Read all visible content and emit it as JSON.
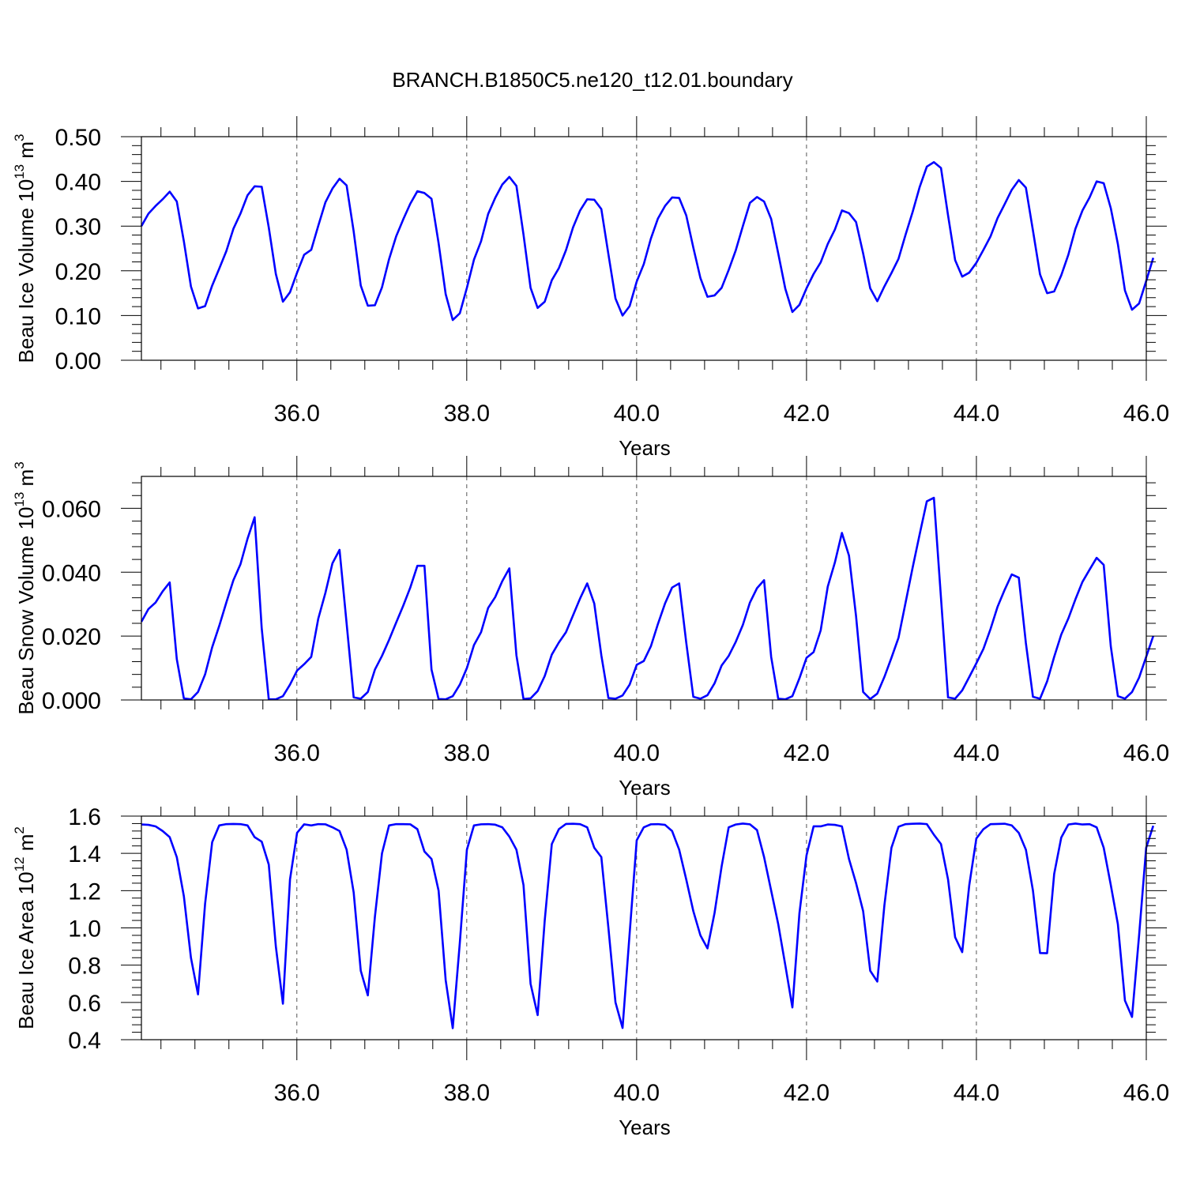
{
  "title": "BRANCH.B1850C5.ne120_t12.01.boundary",
  "colors": {
    "line": "#0000ff",
    "axis": "#000000",
    "grid": "#000000"
  },
  "chart_data": [
    {
      "type": "line",
      "title": "",
      "xlabel": "Years",
      "ylabel": {
        "main": "Beau Ice Volume 10",
        "exponent": "13",
        "unit": " m",
        "unit_exponent": "3"
      },
      "xlim": [
        34.17,
        46.0
      ],
      "ylim": [
        0.0,
        0.5
      ],
      "x_major_ticks": [
        36,
        38,
        40,
        42,
        44,
        46
      ],
      "x_tick_labels": [
        "36.0",
        "38.0",
        "40.0",
        "42.0",
        "44.0",
        "46.0"
      ],
      "y_major_ticks": [
        0.0,
        0.1,
        0.2,
        0.3,
        0.4,
        0.5
      ],
      "y_tick_labels": [
        "0.00",
        "0.10",
        "0.20",
        "0.30",
        "0.40",
        "0.50"
      ],
      "grid": "dashed vertical lines at major x ticks",
      "x_start": 34.17,
      "x_step": 0.0833,
      "series": [
        {
          "values": [
            0.3,
            0.328,
            0.345,
            0.36,
            0.377,
            0.355,
            0.266,
            0.165,
            0.116,
            0.121,
            0.167,
            0.205,
            0.244,
            0.294,
            0.328,
            0.369,
            0.389,
            0.388,
            0.297,
            0.193,
            0.131,
            0.152,
            0.196,
            0.236,
            0.247,
            0.301,
            0.353,
            0.384,
            0.406,
            0.391,
            0.288,
            0.167,
            0.122,
            0.123,
            0.163,
            0.226,
            0.277,
            0.315,
            0.35,
            0.378,
            0.374,
            0.361,
            0.262,
            0.148,
            0.09,
            0.105,
            0.162,
            0.225,
            0.266,
            0.327,
            0.363,
            0.393,
            0.41,
            0.39,
            0.281,
            0.162,
            0.117,
            0.131,
            0.179,
            0.206,
            0.246,
            0.297,
            0.335,
            0.36,
            0.359,
            0.338,
            0.237,
            0.138,
            0.1,
            0.121,
            0.176,
            0.215,
            0.272,
            0.317,
            0.345,
            0.364,
            0.363,
            0.324,
            0.252,
            0.184,
            0.142,
            0.145,
            0.162,
            0.202,
            0.246,
            0.3,
            0.352,
            0.365,
            0.355,
            0.316,
            0.239,
            0.16,
            0.108,
            0.124,
            0.161,
            0.193,
            0.219,
            0.26,
            0.292,
            0.335,
            0.329,
            0.309,
            0.239,
            0.161,
            0.132,
            0.165,
            0.195,
            0.227,
            0.281,
            0.332,
            0.388,
            0.433,
            0.443,
            0.43,
            0.324,
            0.224,
            0.187,
            0.196,
            0.218,
            0.247,
            0.277,
            0.318,
            0.349,
            0.381,
            0.403,
            0.386,
            0.29,
            0.192,
            0.15,
            0.154,
            0.19,
            0.236,
            0.294,
            0.335,
            0.364,
            0.4,
            0.396,
            0.34,
            0.26,
            0.156,
            0.113,
            0.127,
            0.177,
            0.229
          ]
        }
      ]
    },
    {
      "type": "line",
      "title": "",
      "xlabel": "Years",
      "ylabel": {
        "main": "Beau Snow Volume 10",
        "exponent": "13",
        "unit": " m",
        "unit_exponent": "3"
      },
      "xlim": [
        34.17,
        46.0
      ],
      "ylim": [
        0.0,
        0.07
      ],
      "x_major_ticks": [
        36,
        38,
        40,
        42,
        44,
        46
      ],
      "x_tick_labels": [
        "36.0",
        "38.0",
        "40.0",
        "42.0",
        "44.0",
        "46.0"
      ],
      "y_major_ticks": [
        0.0,
        0.02,
        0.04,
        0.06
      ],
      "y_tick_labels": [
        "0.000",
        "0.020",
        "0.040",
        "0.060"
      ],
      "grid": "dashed vertical lines at major x ticks",
      "x_start": 34.17,
      "x_step": 0.0833,
      "series": [
        {
          "values": [
            0.0245,
            0.0285,
            0.0305,
            0.034,
            0.0368,
            0.0128,
            0.0005,
            0.0002,
            0.0025,
            0.008,
            0.0165,
            0.0232,
            0.0305,
            0.0375,
            0.0425,
            0.0505,
            0.0572,
            0.0225,
            0.0002,
            0.0002,
            0.0012,
            0.0048,
            0.0092,
            0.0112,
            0.0135,
            0.0255,
            0.0335,
            0.0428,
            0.047,
            0.024,
            0.0008,
            0.0004,
            0.0025,
            0.0095,
            0.0138,
            0.0188,
            0.0242,
            0.0295,
            0.0352,
            0.042,
            0.042,
            0.0095,
            0.0003,
            0.0002,
            0.0012,
            0.0048,
            0.01,
            0.0172,
            0.0212,
            0.0288,
            0.0322,
            0.0372,
            0.0412,
            0.014,
            0.0003,
            0.0005,
            0.0028,
            0.0075,
            0.0142,
            0.018,
            0.0212,
            0.0265,
            0.0318,
            0.0365,
            0.0302,
            0.014,
            0.0006,
            0.0004,
            0.0014,
            0.0048,
            0.011,
            0.0122,
            0.0168,
            0.0238,
            0.0302,
            0.0352,
            0.0365,
            0.018,
            0.001,
            0.0004,
            0.0015,
            0.0052,
            0.0108,
            0.0138,
            0.0182,
            0.0235,
            0.0305,
            0.035,
            0.0375,
            0.0135,
            0.0004,
            0.0002,
            0.0012,
            0.0068,
            0.0132,
            0.015,
            0.0218,
            0.0355,
            0.043,
            0.0523,
            0.0452,
            0.0262,
            0.0025,
            0.0003,
            0.002,
            0.0072,
            0.0132,
            0.0195,
            0.0305,
            0.0415,
            0.052,
            0.0622,
            0.0633,
            0.032,
            0.0008,
            0.0004,
            0.003,
            0.0072,
            0.0115,
            0.016,
            0.0222,
            0.0292,
            0.0345,
            0.0393,
            0.0383,
            0.0178,
            0.001,
            0.0004,
            0.0058,
            0.0135,
            0.0205,
            0.0255,
            0.0315,
            0.037,
            0.0408,
            0.0445,
            0.0423,
            0.0168,
            0.0012,
            0.0004,
            0.0025,
            0.007,
            0.0135,
            0.02
          ]
        }
      ]
    },
    {
      "type": "line",
      "title": "",
      "xlabel": "Years",
      "ylabel": {
        "main": "Beau Ice Area 10",
        "exponent": "12",
        "unit": " m",
        "unit_exponent": "2"
      },
      "xlim": [
        34.17,
        46.0
      ],
      "ylim": [
        0.4,
        1.6
      ],
      "x_major_ticks": [
        36,
        38,
        40,
        42,
        44,
        46
      ],
      "x_tick_labels": [
        "36.0",
        "38.0",
        "40.0",
        "42.0",
        "44.0",
        "46.0"
      ],
      "y_major_ticks": [
        0.4,
        0.6,
        0.8,
        1.0,
        1.2,
        1.4,
        1.6
      ],
      "y_tick_labels": [
        "0.4",
        "0.6",
        "0.8",
        "1.0",
        "1.2",
        "1.4",
        "1.6"
      ],
      "grid": "dashed vertical lines at major x ticks",
      "x_start": 34.17,
      "x_step": 0.0833,
      "series": [
        {
          "values": [
            1.555,
            1.553,
            1.545,
            1.52,
            1.487,
            1.38,
            1.17,
            0.84,
            0.643,
            1.13,
            1.46,
            1.55,
            1.557,
            1.558,
            1.557,
            1.55,
            1.487,
            1.463,
            1.34,
            0.9,
            0.593,
            1.26,
            1.51,
            1.556,
            1.55,
            1.557,
            1.556,
            1.54,
            1.52,
            1.42,
            1.19,
            0.77,
            0.638,
            1.06,
            1.4,
            1.55,
            1.557,
            1.557,
            1.556,
            1.53,
            1.41,
            1.37,
            1.2,
            0.72,
            0.462,
            0.92,
            1.42,
            1.55,
            1.556,
            1.557,
            1.554,
            1.54,
            1.49,
            1.42,
            1.23,
            0.7,
            0.532,
            1.04,
            1.45,
            1.53,
            1.558,
            1.559,
            1.557,
            1.54,
            1.43,
            1.38,
            1.0,
            0.6,
            0.463,
            0.97,
            1.47,
            1.54,
            1.556,
            1.557,
            1.553,
            1.52,
            1.42,
            1.26,
            1.09,
            0.96,
            0.89,
            1.08,
            1.33,
            1.54,
            1.555,
            1.56,
            1.556,
            1.525,
            1.38,
            1.2,
            1.02,
            0.8,
            0.573,
            1.08,
            1.39,
            1.545,
            1.545,
            1.555,
            1.553,
            1.545,
            1.37,
            1.24,
            1.09,
            0.77,
            0.712,
            1.12,
            1.43,
            1.543,
            1.557,
            1.559,
            1.56,
            1.557,
            1.5,
            1.45,
            1.26,
            0.95,
            0.87,
            1.23,
            1.48,
            1.53,
            1.557,
            1.558,
            1.559,
            1.55,
            1.51,
            1.42,
            1.2,
            0.865,
            0.864,
            1.29,
            1.485,
            1.555,
            1.56,
            1.555,
            1.557,
            1.54,
            1.43,
            1.23,
            1.02,
            0.61,
            0.522,
            0.96,
            1.43,
            1.548
          ]
        }
      ]
    }
  ]
}
